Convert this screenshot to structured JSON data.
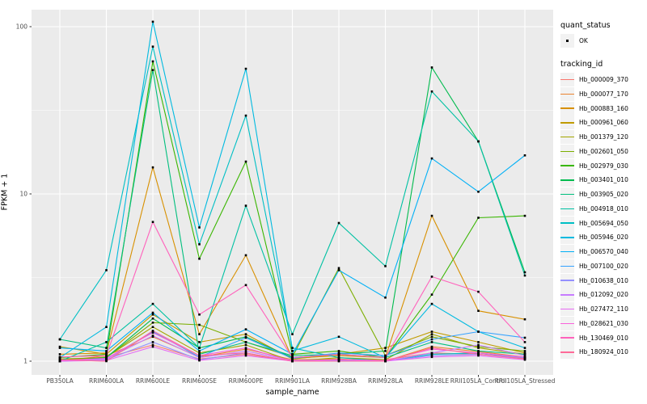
{
  "chart_data": {
    "type": "line",
    "title": "",
    "xlabel": "sample_name",
    "ylabel": "FPKM + 1",
    "y_scale": "log10",
    "y_ticks": [
      1,
      10,
      100
    ],
    "y_tick_labels": [
      "1",
      "10",
      "100"
    ],
    "y_minor": [
      3.162,
      31.623
    ],
    "ylim": [
      0.9,
      120
    ],
    "grid": true,
    "legend_position": "right",
    "categories": [
      "PB350LA",
      "RRIM600LA",
      "RRIM600LE",
      "RRIM600SE",
      "RRIM600PE",
      "RRIM901LA",
      "RRIM928BA",
      "RRIM928LA",
      "RRIM928LE",
      "RRII105LA_Control",
      "RRII105LA_Stressed"
    ],
    "series": [
      {
        "name": "Hb_000009_370",
        "color": "#F8766D",
        "values": [
          1.02,
          1.05,
          1.25,
          1.03,
          1.1,
          1.0,
          1.02,
          1.02,
          1.12,
          1.1,
          1.04
        ]
      },
      {
        "name": "Hb_000077_170",
        "color": "#EA8331",
        "values": [
          1.0,
          1.08,
          1.4,
          1.06,
          1.18,
          1.02,
          1.03,
          1.0,
          1.22,
          1.14,
          1.06
        ]
      },
      {
        "name": "Hb_000883_160",
        "color": "#D89000",
        "values": [
          1.1,
          1.12,
          14.4,
          1.45,
          4.3,
          1.04,
          1.08,
          1.05,
          7.4,
          2.0,
          1.78
        ]
      },
      {
        "name": "Hb_000961_060",
        "color": "#C09B00",
        "values": [
          1.22,
          1.1,
          1.9,
          1.3,
          1.45,
          1.03,
          1.1,
          1.2,
          1.5,
          1.3,
          1.12
        ]
      },
      {
        "name": "Hb_001379_120",
        "color": "#A3A500",
        "values": [
          1.0,
          1.06,
          1.6,
          1.12,
          1.25,
          1.0,
          1.05,
          1.02,
          1.45,
          1.2,
          1.1
        ]
      },
      {
        "name": "Hb_002601_050",
        "color": "#7CAE00",
        "values": [
          1.03,
          1.05,
          1.7,
          1.65,
          1.3,
          1.06,
          3.6,
          1.08,
          1.4,
          1.22,
          1.15
        ]
      },
      {
        "name": "Hb_002979_030",
        "color": "#39B600",
        "values": [
          1.05,
          1.1,
          62.0,
          4.1,
          15.6,
          1.1,
          1.15,
          1.05,
          2.5,
          7.2,
          7.4
        ]
      },
      {
        "name": "Hb_003401_010",
        "color": "#00BB4E",
        "values": [
          1.0,
          1.05,
          1.8,
          1.2,
          1.4,
          1.05,
          1.1,
          1.15,
          57.0,
          20.6,
          3.4
        ]
      },
      {
        "name": "Hb_003905_020",
        "color": "#00BF7D",
        "values": [
          1.35,
          1.2,
          55.0,
          1.1,
          1.3,
          1.08,
          1.1,
          1.05,
          1.3,
          1.15,
          1.1
        ]
      },
      {
        "name": "Hb_004918_010",
        "color": "#00C1A3",
        "values": [
          1.0,
          1.3,
          2.2,
          1.2,
          8.5,
          1.45,
          6.7,
          3.7,
          41.0,
          20.6,
          3.25
        ]
      },
      {
        "name": "Hb_005694_050",
        "color": "#00BFC4",
        "values": [
          1.35,
          3.5,
          76.0,
          5.0,
          29.4,
          1.2,
          1.05,
          1.0,
          1.1,
          1.12,
          1.05
        ]
      },
      {
        "name": "Hb_005946_020",
        "color": "#00BAE0",
        "values": [
          1.05,
          1.6,
          107.0,
          6.3,
          56.0,
          1.15,
          1.4,
          1.05,
          2.2,
          1.5,
          1.2
        ]
      },
      {
        "name": "Hb_006570_040",
        "color": "#00B0F6",
        "values": [
          1.2,
          1.15,
          1.95,
          1.15,
          1.55,
          1.1,
          3.5,
          2.4,
          16.3,
          10.3,
          17.0
        ]
      },
      {
        "name": "Hb_007100_020",
        "color": "#35A2FF",
        "values": [
          1.0,
          1.03,
          1.5,
          1.06,
          1.38,
          1.04,
          1.12,
          1.08,
          1.35,
          1.5,
          1.38
        ]
      },
      {
        "name": "Hb_010638_010",
        "color": "#9590FF",
        "values": [
          1.0,
          1.02,
          1.3,
          1.02,
          1.12,
          1.0,
          1.01,
          1.0,
          1.08,
          1.1,
          1.05
        ]
      },
      {
        "name": "Hb_012092_020",
        "color": "#C77CFF",
        "values": [
          1.0,
          1.03,
          1.42,
          1.05,
          1.15,
          1.01,
          1.02,
          1.0,
          1.12,
          1.25,
          1.08
        ]
      },
      {
        "name": "Hb_027472_110",
        "color": "#E76BF3",
        "values": [
          1.0,
          1.01,
          1.22,
          1.01,
          1.08,
          1.0,
          1.0,
          1.0,
          1.06,
          1.08,
          1.02
        ]
      },
      {
        "name": "Hb_028621_030",
        "color": "#FA62DB",
        "values": [
          1.01,
          1.04,
          1.48,
          1.08,
          1.2,
          1.0,
          1.02,
          1.01,
          1.18,
          1.12,
          1.06
        ]
      },
      {
        "name": "Hb_130469_010",
        "color": "#FF62BC",
        "values": [
          1.06,
          1.08,
          6.8,
          1.9,
          2.85,
          1.05,
          1.1,
          1.05,
          3.2,
          2.6,
          1.3
        ]
      },
      {
        "name": "Hb_180924_010",
        "color": "#FF6A98",
        "values": [
          1.02,
          1.0,
          1.52,
          1.08,
          1.12,
          1.0,
          1.0,
          1.0,
          1.2,
          1.1,
          1.03
        ]
      }
    ],
    "legend": {
      "quant_status_title": "quant_status",
      "quant_status_items": [
        {
          "label": "OK",
          "marker": "point"
        }
      ],
      "tracking_title": "tracking_id"
    },
    "colors": {
      "panel_bg": "#EBEBEB",
      "grid_major": "#FFFFFF",
      "grid_minor": "#FFFFFF",
      "axis_text": "#4D4D4D",
      "tick_mark": "#333333",
      "point": "#000000",
      "legend_key_bg": "#F2F2F2"
    }
  }
}
